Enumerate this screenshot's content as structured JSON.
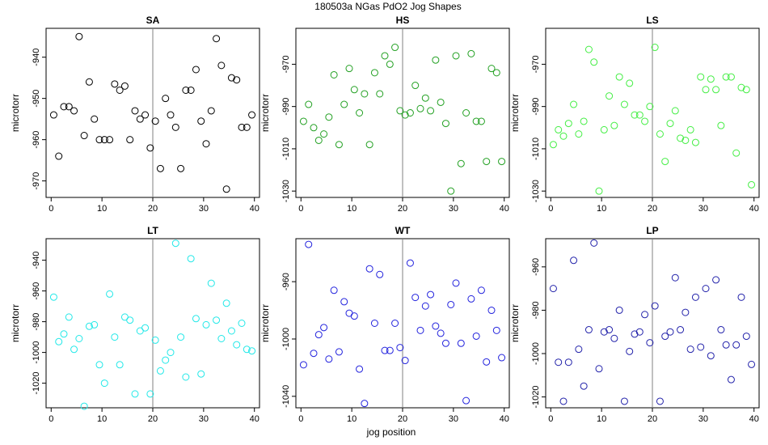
{
  "figure": {
    "title": "180503a   NGas PdO2 Jog Shapes",
    "xlabel": "jog position"
  },
  "chart_data": [
    {
      "type": "scatter",
      "title": "SA",
      "color": "#000000",
      "xlabel": "",
      "ylabel": "microtorr",
      "xlim": [
        -1,
        41
      ],
      "ylim": [
        -974,
        -933
      ],
      "xticks": [
        0,
        10,
        20,
        30,
        40
      ],
      "yticks": [
        -940,
        -950,
        -960,
        -970
      ],
      "vline": 20,
      "x": [
        0.5,
        1.5,
        2.5,
        3.5,
        4.5,
        5.5,
        6.5,
        7.5,
        8.5,
        9.5,
        10.5,
        11.5,
        12.5,
        13.5,
        14.5,
        15.5,
        16.5,
        17.5,
        18.5,
        19.5,
        20.5,
        21.5,
        22.5,
        23.5,
        24.5,
        25.5,
        26.5,
        27.5,
        28.5,
        29.5,
        30.5,
        31.5,
        32.5,
        33.5,
        34.5,
        35.5,
        36.5,
        37.5,
        38.5,
        39.5
      ],
      "y": [
        -954,
        -964,
        -952,
        -952,
        -953,
        -935,
        -959,
        -946,
        -955,
        -960,
        -960,
        -960,
        -946.5,
        -948,
        -947,
        -960,
        -953,
        -955,
        -954,
        -962,
        -955.5,
        -967,
        -950,
        -954,
        -957,
        -967,
        -948,
        -948,
        -943,
        -955.5,
        -961,
        -953,
        -935.5,
        -942,
        -972,
        -945,
        -945.5,
        -957,
        -957,
        -954
      ]
    },
    {
      "type": "scatter",
      "title": "HS",
      "color": "#22a022",
      "xlabel": "",
      "ylabel": "microtorr",
      "xlim": [
        -1,
        41
      ],
      "ylim": [
        -1033,
        -953
      ],
      "xticks": [
        0,
        10,
        20,
        30,
        40
      ],
      "yticks": [
        -970,
        -990,
        -1010,
        -1030
      ],
      "vline": 20,
      "x": [
        0.5,
        1.5,
        2.5,
        3.5,
        4.5,
        5.5,
        6.5,
        7.5,
        8.5,
        9.5,
        10.5,
        11.5,
        12.5,
        13.5,
        14.5,
        15.5,
        16.5,
        17.5,
        18.5,
        19.5,
        20.5,
        21.5,
        22.5,
        23.5,
        24.5,
        25.5,
        26.5,
        27.5,
        28.5,
        29.5,
        30.5,
        31.5,
        32.5,
        33.5,
        34.5,
        35.5,
        36.5,
        37.5,
        38.5,
        39.5
      ],
      "y": [
        -997,
        -989,
        -1000,
        -1006,
        -1003,
        -995,
        -975,
        -1008,
        -989,
        -972,
        -982,
        -993,
        -984,
        -1008,
        -974,
        -984,
        -966,
        -970,
        -962,
        -992,
        -994,
        -993,
        -980,
        -991,
        -986,
        -992,
        -968,
        -988,
        -998,
        -1030,
        -966,
        -1017,
        -993,
        -965,
        -997,
        -997,
        -1016,
        -972,
        -974,
        -1016
      ]
    },
    {
      "type": "scatter",
      "title": "LS",
      "color": "#44ee44",
      "xlabel": "",
      "ylabel": "microtorr",
      "xlim": [
        -1,
        41
      ],
      "ylim": [
        -1033,
        -953
      ],
      "xticks": [
        0,
        10,
        20,
        30,
        40
      ],
      "yticks": [
        -970,
        -990,
        -1010,
        -1030
      ],
      "vline": 20,
      "x": [
        0.5,
        1.5,
        2.5,
        3.5,
        4.5,
        5.5,
        6.5,
        7.5,
        8.5,
        9.5,
        10.5,
        11.5,
        12.5,
        13.5,
        14.5,
        15.5,
        16.5,
        17.5,
        18.5,
        19.5,
        20.5,
        21.5,
        22.5,
        23.5,
        24.5,
        25.5,
        26.5,
        27.5,
        28.5,
        29.5,
        30.5,
        31.5,
        32.5,
        33.5,
        34.5,
        35.5,
        36.5,
        37.5,
        38.5,
        39.5
      ],
      "y": [
        -1008,
        -1001,
        -1004,
        -998,
        -989,
        -1003,
        -997,
        -963,
        -969,
        -1030,
        -1001,
        -985,
        -999,
        -976,
        -989,
        -979,
        -994,
        -994,
        -997,
        -990,
        -962,
        -1003,
        -1016,
        -998,
        -992,
        -1005,
        -1006,
        -1001,
        -1007,
        -976,
        -982,
        -977,
        -982,
        -999,
        -976,
        -976,
        -1012,
        -981,
        -982,
        -1027
      ]
    },
    {
      "type": "scatter",
      "title": "LT",
      "color": "#22e8e8",
      "xlabel": "",
      "ylabel": "microtorr",
      "xlim": [
        -1,
        41
      ],
      "ylim": [
        -1036,
        -926
      ],
      "xticks": [
        0,
        10,
        20,
        30,
        40
      ],
      "yticks": [
        -940,
        -960,
        -980,
        -1000,
        -1020
      ],
      "vline": 20,
      "x": [
        0.5,
        1.5,
        2.5,
        3.5,
        4.5,
        5.5,
        6.5,
        7.5,
        8.5,
        9.5,
        10.5,
        11.5,
        12.5,
        13.5,
        14.5,
        15.5,
        16.5,
        17.5,
        18.5,
        19.5,
        20.5,
        21.5,
        22.5,
        23.5,
        24.5,
        25.5,
        26.5,
        27.5,
        28.5,
        29.5,
        30.5,
        31.5,
        32.5,
        33.5,
        34.5,
        35.5,
        36.5,
        37.5,
        38.5,
        39.5
      ],
      "y": [
        -964,
        -993,
        -988,
        -977,
        -998,
        -991,
        -1035,
        -983,
        -982,
        -1008,
        -1020,
        -962,
        -990,
        -1008,
        -977,
        -979,
        -1027,
        -986,
        -984,
        -1027,
        -992,
        -1012,
        -1005,
        -1000,
        -929,
        -990,
        -1016,
        -939,
        -978,
        -1014,
        -982,
        -955,
        -979,
        -991,
        -968,
        -986,
        -995,
        -981,
        -998,
        -999
      ]
    },
    {
      "type": "scatter",
      "title": "WT",
      "color": "#2222dd",
      "xlabel": "",
      "ylabel": "microtorr",
      "xlim": [
        -1,
        41
      ],
      "ylim": [
        -1048,
        -930
      ],
      "xticks": [
        0,
        10,
        20,
        30,
        40
      ],
      "yticks": [
        -960,
        -1000,
        -1040
      ],
      "vline": 20,
      "x": [
        0.5,
        1.5,
        2.5,
        3.5,
        4.5,
        5.5,
        6.5,
        7.5,
        8.5,
        9.5,
        10.5,
        11.5,
        12.5,
        13.5,
        14.5,
        15.5,
        16.5,
        17.5,
        18.5,
        19.5,
        20.5,
        21.5,
        22.5,
        23.5,
        24.5,
        25.5,
        26.5,
        27.5,
        28.5,
        29.5,
        30.5,
        31.5,
        32.5,
        33.5,
        34.5,
        35.5,
        36.5,
        37.5,
        38.5,
        39.5
      ],
      "y": [
        -1018,
        -934,
        -1010,
        -997,
        -992,
        -1014,
        -966,
        -1009,
        -974,
        -982,
        -984,
        -1021,
        -1045,
        -951,
        -989,
        -955,
        -1008,
        -1008,
        -989,
        -1006,
        -1015,
        -947,
        -971,
        -994,
        -977,
        -969,
        -991,
        -996,
        -1003,
        -976,
        -961,
        -1003,
        -1043,
        -972,
        -998,
        -966,
        -1016,
        -980,
        -994,
        -1013
      ]
    },
    {
      "type": "scatter",
      "title": "LP",
      "color": "#2222aa",
      "xlabel": "",
      "ylabel": "microtorr",
      "xlim": [
        -1,
        41
      ],
      "ylim": [
        -1025,
        -947
      ],
      "xticks": [
        0,
        10,
        20,
        30,
        40
      ],
      "yticks": [
        -960,
        -980,
        -1000,
        -1020
      ],
      "vline": 20,
      "x": [
        0.5,
        1.5,
        2.5,
        3.5,
        4.5,
        5.5,
        6.5,
        7.5,
        8.5,
        9.5,
        10.5,
        11.5,
        12.5,
        13.5,
        14.5,
        15.5,
        16.5,
        17.5,
        18.5,
        19.5,
        20.5,
        21.5,
        22.5,
        23.5,
        24.5,
        25.5,
        26.5,
        27.5,
        28.5,
        29.5,
        30.5,
        31.5,
        32.5,
        33.5,
        34.5,
        35.5,
        36.5,
        37.5,
        38.5,
        39.5
      ],
      "y": [
        -970,
        -1004,
        -1022,
        -1004,
        -957,
        -998,
        -1015,
        -989,
        -949,
        -1007,
        -990,
        -989,
        -993,
        -980,
        -1022,
        -999,
        -991,
        -990,
        -982,
        -995,
        -978,
        -1022,
        -992,
        -990,
        -965,
        -989,
        -981,
        -998,
        -974,
        -997,
        -970,
        -1001,
        -966,
        -989,
        -996,
        -1012,
        -996,
        -974,
        -992,
        -1005
      ]
    }
  ]
}
